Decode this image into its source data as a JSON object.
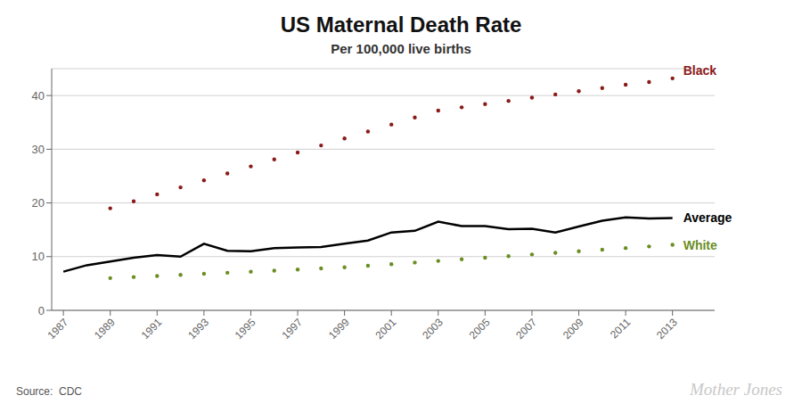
{
  "chart_data": {
    "type": "line",
    "title": "US Maternal Death Rate",
    "subtitle": "Per 100,000 live births",
    "annotations": [
      "Source:  CDC",
      "Mother Jones"
    ],
    "x": [
      1987,
      1988,
      1989,
      1990,
      1991,
      1992,
      1993,
      1994,
      1995,
      1996,
      1997,
      1998,
      1999,
      2000,
      2001,
      2002,
      2003,
      2004,
      2005,
      2006,
      2007,
      2008,
      2009,
      2010,
      2011,
      2012,
      2013
    ],
    "series": [
      {
        "name": "Black",
        "color": "#8B1A1A",
        "marker": "circle",
        "line_style": "none",
        "values": [
          null,
          null,
          19.0,
          20.3,
          21.6,
          22.9,
          24.2,
          25.5,
          26.8,
          28.1,
          29.4,
          30.7,
          32.0,
          33.3,
          34.6,
          35.9,
          37.2,
          37.8,
          38.4,
          39.0,
          39.6,
          40.2,
          40.8,
          41.4,
          42.0,
          42.5,
          43.2
        ]
      },
      {
        "name": "Average",
        "color": "#000000",
        "line_style": "solid",
        "values": [
          7.2,
          8.4,
          9.1,
          9.8,
          10.3,
          10.0,
          12.4,
          11.1,
          11.0,
          11.6,
          11.7,
          11.8,
          12.4,
          13.0,
          14.5,
          14.8,
          16.5,
          15.7,
          15.7,
          15.1,
          15.2,
          14.5,
          15.6,
          16.7,
          17.3,
          17.1,
          17.2
        ]
      },
      {
        "name": "White",
        "color": "#6B8E23",
        "marker": "circle",
        "line_style": "none",
        "values": [
          null,
          null,
          6.0,
          6.2,
          6.4,
          6.6,
          6.8,
          7.0,
          7.2,
          7.4,
          7.6,
          7.8,
          8.0,
          8.3,
          8.6,
          8.9,
          9.2,
          9.5,
          9.8,
          10.1,
          10.4,
          10.7,
          11.0,
          11.3,
          11.6,
          11.9,
          12.2
        ]
      }
    ],
    "xlim": [
      1986.5,
      2014.8
    ],
    "xticks": [
      1987,
      1989,
      1991,
      1993,
      1995,
      1997,
      1999,
      2001,
      2003,
      2005,
      2007,
      2009,
      2011,
      2013
    ],
    "ylim": [
      0,
      45
    ],
    "yticks": [
      0,
      10,
      20,
      30,
      40
    ],
    "grid": "y"
  }
}
